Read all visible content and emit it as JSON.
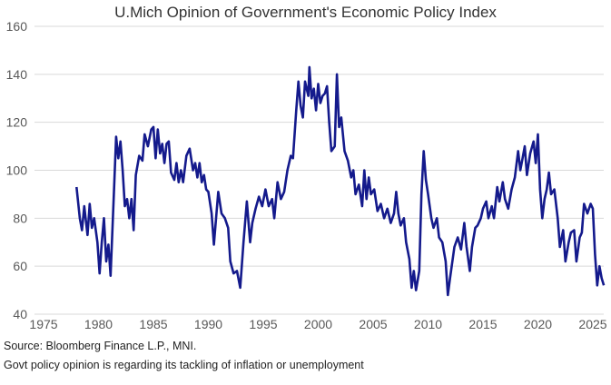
{
  "chart_data": {
    "type": "line",
    "title": "U.Mich Opinion of Government's Economic Policy Index",
    "xlabel": "",
    "ylabel": "",
    "xlim": [
      1975,
      2026.5
    ],
    "ylim": [
      40,
      160
    ],
    "x_ticks": [
      1975,
      1980,
      1985,
      1990,
      1995,
      2000,
      2005,
      2010,
      2015,
      2020,
      2025
    ],
    "y_ticks": [
      40,
      60,
      80,
      100,
      120,
      140,
      160
    ],
    "grid": "horizontal",
    "line_color": "#141a8c",
    "points": [
      [
        1978.0,
        93
      ],
      [
        1978.3,
        80
      ],
      [
        1978.5,
        75
      ],
      [
        1978.7,
        85
      ],
      [
        1979.0,
        73
      ],
      [
        1979.2,
        86
      ],
      [
        1979.4,
        76
      ],
      [
        1979.6,
        80
      ],
      [
        1979.9,
        70
      ],
      [
        1980.1,
        57
      ],
      [
        1980.3,
        70
      ],
      [
        1980.5,
        80
      ],
      [
        1980.7,
        62
      ],
      [
        1980.9,
        69
      ],
      [
        1981.1,
        56
      ],
      [
        1981.4,
        90
      ],
      [
        1981.6,
        114
      ],
      [
        1981.8,
        105
      ],
      [
        1982.0,
        112
      ],
      [
        1982.2,
        100
      ],
      [
        1982.4,
        85
      ],
      [
        1982.6,
        88
      ],
      [
        1982.8,
        80
      ],
      [
        1983.0,
        88
      ],
      [
        1983.2,
        75
      ],
      [
        1983.4,
        98
      ],
      [
        1983.7,
        106
      ],
      [
        1984.0,
        104
      ],
      [
        1984.2,
        115
      ],
      [
        1984.5,
        110
      ],
      [
        1984.8,
        117
      ],
      [
        1985.0,
        118
      ],
      [
        1985.2,
        105
      ],
      [
        1985.4,
        117
      ],
      [
        1985.6,
        107
      ],
      [
        1985.8,
        111
      ],
      [
        1986.0,
        103
      ],
      [
        1986.2,
        111
      ],
      [
        1986.4,
        112
      ],
      [
        1986.6,
        99
      ],
      [
        1986.9,
        96
      ],
      [
        1987.1,
        103
      ],
      [
        1987.3,
        95
      ],
      [
        1987.5,
        100
      ],
      [
        1987.7,
        95
      ],
      [
        1988.0,
        106
      ],
      [
        1988.3,
        109
      ],
      [
        1988.6,
        100
      ],
      [
        1988.8,
        103
      ],
      [
        1989.0,
        97
      ],
      [
        1989.2,
        103
      ],
      [
        1989.4,
        95
      ],
      [
        1989.6,
        98
      ],
      [
        1989.8,
        92
      ],
      [
        1990.0,
        91
      ],
      [
        1990.3,
        82
      ],
      [
        1990.5,
        69
      ],
      [
        1990.7,
        80
      ],
      [
        1990.9,
        91
      ],
      [
        1991.2,
        82
      ],
      [
        1991.5,
        80
      ],
      [
        1991.8,
        76
      ],
      [
        1992.0,
        62
      ],
      [
        1992.3,
        57
      ],
      [
        1992.6,
        58
      ],
      [
        1992.9,
        51
      ],
      [
        1993.2,
        70
      ],
      [
        1993.5,
        87
      ],
      [
        1993.8,
        70
      ],
      [
        1994.0,
        78
      ],
      [
        1994.3,
        84
      ],
      [
        1994.6,
        89
      ],
      [
        1994.9,
        85
      ],
      [
        1995.2,
        92
      ],
      [
        1995.5,
        85
      ],
      [
        1995.8,
        88
      ],
      [
        1996.0,
        80
      ],
      [
        1996.3,
        95
      ],
      [
        1996.6,
        88
      ],
      [
        1996.9,
        91
      ],
      [
        1997.2,
        100
      ],
      [
        1997.5,
        106
      ],
      [
        1997.7,
        105
      ],
      [
        1998.0,
        125
      ],
      [
        1998.2,
        137
      ],
      [
        1998.4,
        127
      ],
      [
        1998.6,
        122
      ],
      [
        1998.8,
        137
      ],
      [
        1999.1,
        131
      ],
      [
        1999.2,
        143
      ],
      [
        1999.4,
        130
      ],
      [
        1999.6,
        134
      ],
      [
        1999.8,
        125
      ],
      [
        2000.0,
        136
      ],
      [
        2000.2,
        128
      ],
      [
        2000.4,
        131
      ],
      [
        2000.6,
        132
      ],
      [
        2000.8,
        135
      ],
      [
        2001.0,
        120
      ],
      [
        2001.2,
        108
      ],
      [
        2001.5,
        110
      ],
      [
        2001.7,
        140
      ],
      [
        2001.9,
        118
      ],
      [
        2002.1,
        122
      ],
      [
        2002.4,
        108
      ],
      [
        2002.7,
        104
      ],
      [
        2003.0,
        97
      ],
      [
        2003.2,
        100
      ],
      [
        2003.4,
        90
      ],
      [
        2003.7,
        94
      ],
      [
        2004.0,
        85
      ],
      [
        2004.2,
        100
      ],
      [
        2004.4,
        88
      ],
      [
        2004.6,
        97
      ],
      [
        2004.8,
        90
      ],
      [
        2005.1,
        92
      ],
      [
        2005.4,
        83
      ],
      [
        2005.7,
        86
      ],
      [
        2006.0,
        80
      ],
      [
        2006.3,
        84
      ],
      [
        2006.6,
        78
      ],
      [
        2006.9,
        82
      ],
      [
        2007.1,
        91
      ],
      [
        2007.3,
        82
      ],
      [
        2007.5,
        77
      ],
      [
        2007.8,
        80
      ],
      [
        2008.0,
        70
      ],
      [
        2008.3,
        63
      ],
      [
        2008.5,
        51
      ],
      [
        2008.7,
        58
      ],
      [
        2008.9,
        50
      ],
      [
        2009.2,
        58
      ],
      [
        2009.4,
        90
      ],
      [
        2009.6,
        108
      ],
      [
        2009.8,
        96
      ],
      [
        2010.0,
        90
      ],
      [
        2010.3,
        80
      ],
      [
        2010.5,
        76
      ],
      [
        2010.8,
        80
      ],
      [
        2011.0,
        72
      ],
      [
        2011.3,
        70
      ],
      [
        2011.6,
        62
      ],
      [
        2011.8,
        48
      ],
      [
        2012.0,
        55
      ],
      [
        2012.4,
        68
      ],
      [
        2012.7,
        72
      ],
      [
        2013.0,
        67
      ],
      [
        2013.3,
        78
      ],
      [
        2013.5,
        68
      ],
      [
        2013.8,
        58
      ],
      [
        2014.0,
        68
      ],
      [
        2014.3,
        76
      ],
      [
        2014.5,
        77
      ],
      [
        2014.8,
        80
      ],
      [
        2015.0,
        84
      ],
      [
        2015.3,
        87
      ],
      [
        2015.5,
        80
      ],
      [
        2015.8,
        85
      ],
      [
        2016.0,
        80
      ],
      [
        2016.3,
        93
      ],
      [
        2016.5,
        87
      ],
      [
        2016.8,
        95
      ],
      [
        2017.0,
        88
      ],
      [
        2017.3,
        84
      ],
      [
        2017.6,
        92
      ],
      [
        2017.9,
        97
      ],
      [
        2018.2,
        108
      ],
      [
        2018.4,
        100
      ],
      [
        2018.6,
        105
      ],
      [
        2018.8,
        110
      ],
      [
        2019.0,
        98
      ],
      [
        2019.3,
        107
      ],
      [
        2019.6,
        112
      ],
      [
        2019.8,
        103
      ],
      [
        2020.0,
        115
      ],
      [
        2020.2,
        92
      ],
      [
        2020.4,
        80
      ],
      [
        2020.6,
        88
      ],
      [
        2020.8,
        92
      ],
      [
        2021.0,
        99
      ],
      [
        2021.2,
        90
      ],
      [
        2021.5,
        92
      ],
      [
        2021.8,
        80
      ],
      [
        2022.0,
        68
      ],
      [
        2022.3,
        75
      ],
      [
        2022.5,
        62
      ],
      [
        2022.8,
        70
      ],
      [
        2023.0,
        74
      ],
      [
        2023.3,
        75
      ],
      [
        2023.5,
        62
      ],
      [
        2023.8,
        72
      ],
      [
        2024.0,
        74
      ],
      [
        2024.2,
        86
      ],
      [
        2024.5,
        82
      ],
      [
        2024.8,
        86
      ],
      [
        2025.0,
        84
      ],
      [
        2025.2,
        65
      ],
      [
        2025.4,
        52
      ],
      [
        2025.6,
        60
      ],
      [
        2025.8,
        55
      ],
      [
        2026.0,
        52
      ]
    ]
  },
  "footer": {
    "source": "Source: Bloomberg Finance L.P., MNI.",
    "note": "Govt policy opinion is regarding its tackling of inflation or unemployment"
  }
}
